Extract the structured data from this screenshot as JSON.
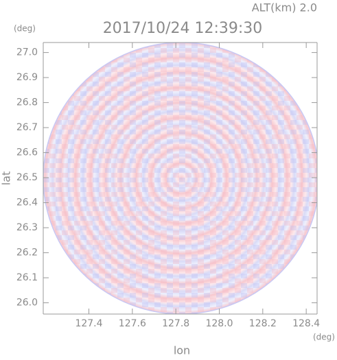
{
  "chart_data": {
    "type": "radar-ppi",
    "title": "2017/10/24 12:39:30",
    "subtitle": "ALT(km) 2.0",
    "x_label": "lon",
    "y_label": "lat",
    "x_unit": "(deg)",
    "y_unit": "(deg)",
    "xlim": [
      127.19,
      128.45
    ],
    "ylim": [
      25.955,
      27.04
    ],
    "xticks": [
      127.4,
      127.6,
      127.8,
      {
        "value": 128,
        "label": "128.0"
      },
      128.2,
      128.4
    ],
    "yticks": [
      {
        "value": 26,
        "label": "26.0"
      },
      26.1,
      26.2,
      26.3,
      26.4,
      26.5,
      26.6,
      26.7,
      26.8,
      26.9,
      {
        "value": 27,
        "label": "27.0"
      }
    ]
  }
}
